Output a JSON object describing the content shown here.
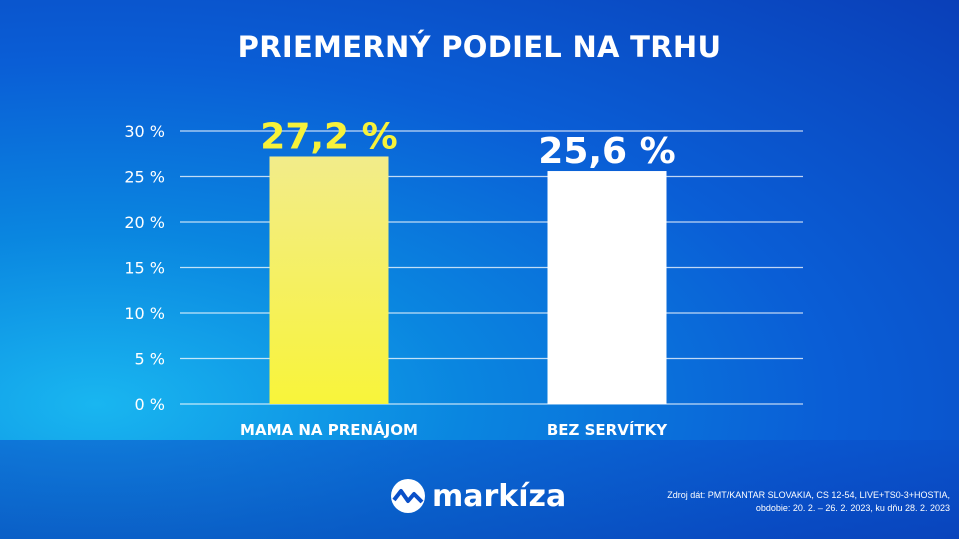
{
  "chart_data": {
    "type": "bar",
    "title": "PRIEMERNÝ PODIEL NA TRHU",
    "categories": [
      "MAMA NA PRENÁJOM",
      "BEZ SERVÍTKY"
    ],
    "values": [
      27.2,
      25.6
    ],
    "data_labels": [
      "27,2 %",
      "25,6 %"
    ],
    "ylim": [
      0,
      30
    ],
    "yticks": [
      0,
      5,
      10,
      15,
      20,
      25,
      30
    ],
    "ytick_labels": [
      "0 %",
      "5 %",
      "10 %",
      "15 %",
      "20 %",
      "25 %",
      "30 %"
    ],
    "grid": true,
    "colors": [
      "#f4f06a",
      "#ffffff"
    ],
    "label_colors": [
      "#f7f23a",
      "#ffffff"
    ]
  },
  "logo": {
    "text": "markíza",
    "icon": "markiza-wave-logo"
  },
  "source": {
    "line1": "Zdroj dát: PMT/KANTAR SLOVAKIA, CS 12-54, LIVE+TS0-3+HOSTIA,",
    "line2": "obdobie: 20. 2. – 26. 2. 2023, ku dňu 28. 2. 2023"
  }
}
